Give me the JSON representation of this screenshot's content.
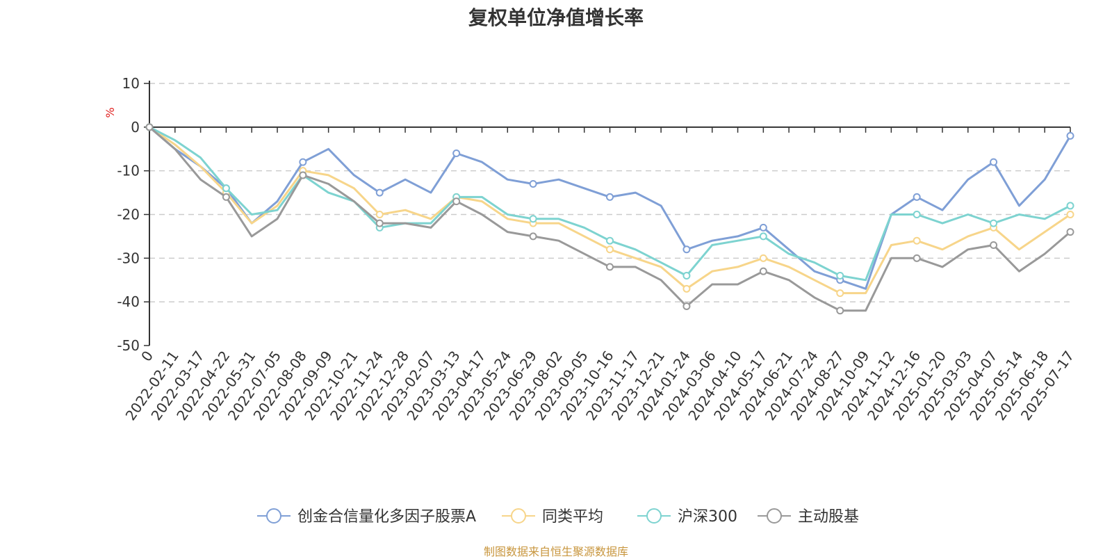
{
  "chart_data": {
    "type": "line",
    "title": "复权单位净值增长率",
    "ylabel": "%",
    "ylim": [
      -50,
      10
    ],
    "yticks": [
      10,
      0,
      -10,
      -20,
      -30,
      -40,
      -50
    ],
    "categories": [
      "0",
      "2022-02-11",
      "2022-03-17",
      "2022-04-22",
      "2022-05-31",
      "2022-07-05",
      "2022-08-08",
      "2022-09-09",
      "2022-10-21",
      "2022-11-24",
      "2022-12-28",
      "2023-02-07",
      "2023-03-13",
      "2023-04-17",
      "2023-05-24",
      "2023-06-29",
      "2023-08-02",
      "2023-09-05",
      "2023-10-16",
      "2023-11-17",
      "2023-12-21",
      "2024-01-24",
      "2024-03-06",
      "2024-04-10",
      "2024-05-17",
      "2024-06-21",
      "2024-07-24",
      "2024-08-27",
      "2024-10-09",
      "2024-11-12",
      "2024-12-16",
      "2025-01-20",
      "2025-03-03",
      "2025-04-07",
      "2025-05-14",
      "2025-06-18",
      "2025-07-17"
    ],
    "grid": "horizontal-dashed",
    "legend_position": "bottom",
    "series": [
      {
        "name": "创金合信量化多因子股票A",
        "color": "#7f9fd6",
        "values": [
          0,
          -5,
          -9,
          -14,
          -22,
          -17,
          -8,
          -5,
          -11,
          -15,
          -12,
          -15,
          -6,
          -8,
          -12,
          -13,
          -12,
          -14,
          -16,
          -15,
          -18,
          -28,
          -26,
          -25,
          -23,
          -28,
          -33,
          -35,
          -37,
          -20,
          -16,
          -19,
          -12,
          -8,
          -18,
          -12,
          -2
        ]
      },
      {
        "name": "同类平均",
        "color": "#f7d58a",
        "values": [
          0,
          -4,
          -9,
          -15,
          -22,
          -18,
          -10,
          -11,
          -14,
          -20,
          -19,
          -21,
          -16,
          -17,
          -21,
          -22,
          -22,
          -25,
          -28,
          -30,
          -32,
          -37,
          -33,
          -32,
          -30,
          -32,
          -35,
          -38,
          -38,
          -27,
          -26,
          -28,
          -25,
          -23,
          -28,
          -24,
          -20
        ]
      },
      {
        "name": "沪深300",
        "color": "#7dd3d0",
        "values": [
          0,
          -3,
          -7,
          -14,
          -20,
          -19,
          -11,
          -15,
          -17,
          -23,
          -22,
          -22,
          -16,
          -16,
          -20,
          -21,
          -21,
          -23,
          -26,
          -28,
          -31,
          -34,
          -27,
          -26,
          -25,
          -29,
          -31,
          -34,
          -35,
          -20,
          -20,
          -22,
          -20,
          -22,
          -20,
          -21,
          -18
        ]
      },
      {
        "name": "主动股基",
        "color": "#999999",
        "values": [
          0,
          -5,
          -12,
          -16,
          -25,
          -21,
          -11,
          -13,
          -17,
          -22,
          -22,
          -23,
          -17,
          -20,
          -24,
          -25,
          -26,
          -29,
          -32,
          -32,
          -35,
          -41,
          -36,
          -36,
          -33,
          -35,
          -39,
          -42,
          -42,
          -30,
          -30,
          -32,
          -28,
          -27,
          -33,
          -29,
          -24
        ]
      }
    ]
  },
  "source_note": "制图数据来自恒生聚源数据库"
}
